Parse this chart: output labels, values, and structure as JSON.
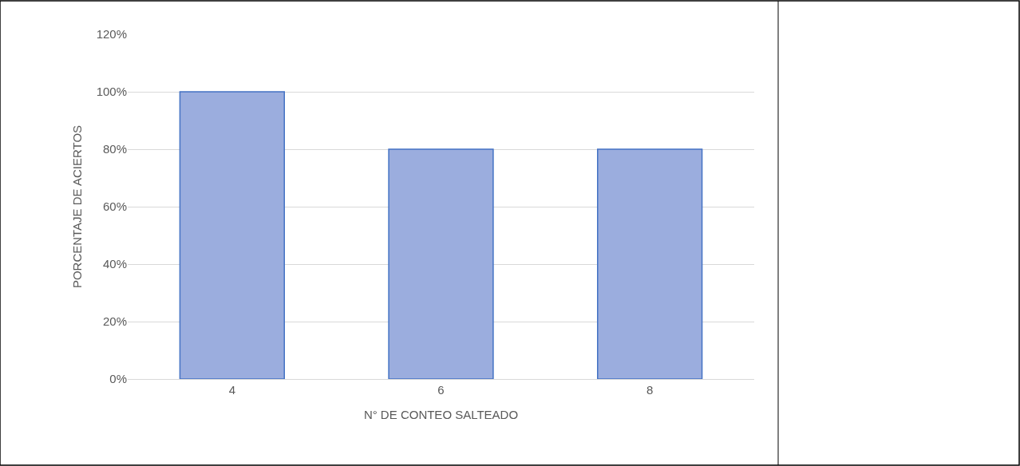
{
  "chart_data": {
    "type": "bar",
    "xlabel": "N° DE CONTEO SALTEADO",
    "ylabel": "PORCENTAJE DE ACIERTOS",
    "categories": [
      "4",
      "6",
      "8"
    ],
    "values": [
      100,
      80,
      80
    ],
    "color": "#9badde",
    "ylim": [
      0,
      120
    ],
    "yticks": [
      {
        "value": 0,
        "label": "0%"
      },
      {
        "value": 20,
        "label": "20%"
      },
      {
        "value": 40,
        "label": "40%"
      },
      {
        "value": 60,
        "label": "60%"
      },
      {
        "value": 80,
        "label": "80%"
      },
      {
        "value": 100,
        "label": "100%"
      },
      {
        "value": 120,
        "label": "120%"
      }
    ],
    "grid": "y",
    "legend": false
  }
}
